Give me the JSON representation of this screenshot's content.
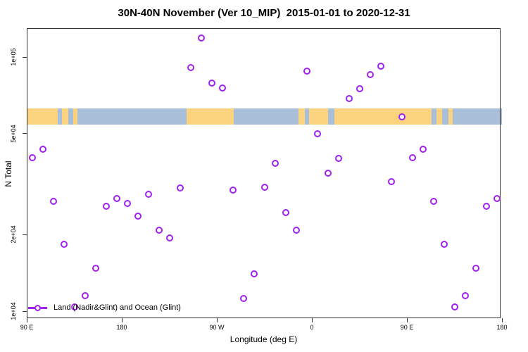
{
  "title": "30N-40N November (Ver 10_MIP)  2015-01-01 to 2020-12-31",
  "axes": {
    "x": {
      "label": "Longitude (deg E)",
      "ticks": [
        {
          "lon": 90,
          "label": "90 E"
        },
        {
          "lon": 180,
          "label": "180"
        },
        {
          "lon": 270,
          "label": "90 W"
        },
        {
          "lon": 360,
          "label": "0"
        },
        {
          "lon": 450,
          "label": "90 E"
        },
        {
          "lon": 540,
          "label": "180"
        }
      ]
    },
    "y": {
      "label": "N Total",
      "scale": "log",
      "ticks": [
        {
          "value": 100000,
          "label": "1e+05"
        },
        {
          "value": 50000,
          "label": "5e+04"
        },
        {
          "value": 20000,
          "label": "2e+04"
        },
        {
          "value": 10000,
          "label": "1e+04"
        }
      ]
    }
  },
  "legend": {
    "label": "Land (Nadir&Glint) and Ocean (Glint)"
  },
  "colors": {
    "marker": "#A020F0",
    "land": "#FBD37E",
    "ocean": "#A9BFD9",
    "axis": "#333333"
  },
  "map_band": {
    "description": "30N-40N latitude world-map strip, longitudes wrapping 90E to 180 (second pass)",
    "segments": [
      {
        "from": 90,
        "to": 119,
        "type": "land"
      },
      {
        "from": 119,
        "to": 123,
        "type": "ocean"
      },
      {
        "from": 123,
        "to": 129,
        "type": "land"
      },
      {
        "from": 129,
        "to": 134,
        "type": "ocean"
      },
      {
        "from": 134,
        "to": 138,
        "type": "land"
      },
      {
        "from": 138,
        "to": 241,
        "type": "ocean"
      },
      {
        "from": 241,
        "to": 286,
        "type": "land"
      },
      {
        "from": 286,
        "to": 347,
        "type": "ocean"
      },
      {
        "from": 347,
        "to": 353,
        "type": "land"
      },
      {
        "from": 353,
        "to": 357,
        "type": "ocean"
      },
      {
        "from": 357,
        "to": 375,
        "type": "land"
      },
      {
        "from": 375,
        "to": 381,
        "type": "ocean"
      },
      {
        "from": 381,
        "to": 473,
        "type": "land"
      },
      {
        "from": 473,
        "to": 478,
        "type": "ocean"
      },
      {
        "from": 478,
        "to": 483,
        "type": "land"
      },
      {
        "from": 483,
        "to": 489,
        "type": "ocean"
      },
      {
        "from": 489,
        "to": 493,
        "type": "land"
      },
      {
        "from": 493,
        "to": 540,
        "type": "ocean"
      }
    ]
  },
  "chart_data": {
    "type": "scatter",
    "title": "30N-40N November (Ver 10_MIP)  2015-01-01 to 2020-12-31",
    "xlabel": "Longitude (deg E)",
    "ylabel": "N Total",
    "y_scale": "log",
    "ylim": [
      9400,
      130000
    ],
    "xlim_deg_continuous": [
      90,
      540
    ],
    "series_name": "Land (Nadir&Glint) and Ocean (Glint)",
    "x": [
      95,
      105,
      115,
      125,
      135,
      145,
      155,
      165,
      175,
      185,
      195,
      205,
      215,
      225,
      235,
      245,
      255,
      265,
      275,
      285,
      295,
      305,
      315,
      325,
      335,
      345,
      355,
      365,
      375,
      385,
      395,
      405,
      415,
      425,
      435,
      445,
      455,
      465,
      475,
      485,
      495,
      505,
      515,
      525,
      535
    ],
    "y": [
      40200,
      43400,
      27100,
      18300,
      10400,
      11500,
      14800,
      25900,
      27700,
      26500,
      23700,
      28800,
      20800,
      19400,
      30500,
      91000,
      119000,
      79000,
      75500,
      30000,
      11200,
      14000,
      30800,
      38200,
      24400,
      20800,
      88000,
      50000,
      34900,
      40000,
      68700,
      75000,
      85000,
      92000,
      32300,
      58000,
      40200,
      43400,
      27100,
      18300,
      10400,
      11500,
      14800,
      25900,
      27700
    ]
  }
}
